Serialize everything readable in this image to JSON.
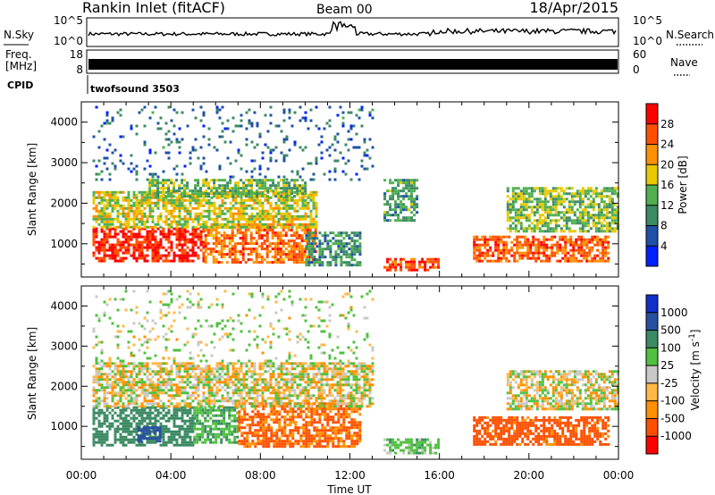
{
  "header": {
    "station": "Rankin Inlet (fitACF)",
    "beam": "Beam 00",
    "date": "18/Apr/2015"
  },
  "top_panels": {
    "nsky_label": "N.Sky",
    "nsky_ticks": [
      "10^5",
      "10^0"
    ],
    "nsearch_label": "N.Search",
    "nsearch_ticks": [
      "10^5",
      "10^0"
    ],
    "freq_label_1": "Freq.",
    "freq_label_2": "[MHz]",
    "freq_ticks": [
      "18",
      "8"
    ],
    "nave_label": "Nave",
    "nave_ticks": [
      "60",
      "0"
    ],
    "cpid_label": "CPID",
    "cpid_value": "twofsound 3503"
  },
  "colors": {
    "power": [
      "#0020ff",
      "#1e50a8",
      "#3c8a64",
      "#50b050",
      "#e8c800",
      "#ff9000",
      "#ff5000",
      "#ff0000"
    ],
    "velocity": [
      "#ff0000",
      "#ff5000",
      "#ff9000",
      "#ffb848",
      "#c8c8c8",
      "#50c040",
      "#3c8a64",
      "#2850a0",
      "#1030c8"
    ]
  },
  "chart_data": [
    {
      "type": "heatmap",
      "name": "power",
      "ylabel": "Slant Range [km]",
      "xlabel": "Time UT",
      "xlim": [
        "00:00",
        "24:00"
      ],
      "x_ticks": [
        "00:00",
        "04:00",
        "08:00",
        "12:00",
        "16:00",
        "20:00",
        "00:00"
      ],
      "ylim": [
        180,
        4500
      ],
      "y_ticks": [
        1000,
        2000,
        3000,
        4000
      ],
      "colorbar_label": "Power [dB]",
      "colorbar_ticks": [
        "4",
        "8",
        "12",
        "16",
        "20",
        "24",
        "28"
      ],
      "colorbar_range": [
        0,
        30
      ],
      "regions": [
        {
          "t": [
            0.5,
            5.5
          ],
          "r": [
            550,
            1400
          ],
          "v": 27
        },
        {
          "t": [
            5.5,
            10.5
          ],
          "r": [
            550,
            1500
          ],
          "v": 23
        },
        {
          "t": [
            0.5,
            10.5
          ],
          "r": [
            1400,
            2300
          ],
          "v": 16
        },
        {
          "t": [
            3.0,
            10.0
          ],
          "r": [
            2200,
            2600
          ],
          "v": 13
        },
        {
          "t": [
            10.0,
            12.5
          ],
          "r": [
            500,
            1300
          ],
          "v": 10
        },
        {
          "t": [
            13.5,
            16.0
          ],
          "r": [
            350,
            650
          ],
          "v": 26
        },
        {
          "t": [
            13.5,
            15.0
          ],
          "r": [
            1600,
            2600
          ],
          "v": 11
        },
        {
          "t": [
            17.5,
            23.5
          ],
          "r": [
            550,
            1200
          ],
          "v": 24
        },
        {
          "t": [
            19.0,
            24.0
          ],
          "r": [
            1300,
            2400
          ],
          "v": 14
        },
        {
          "t": [
            0.5,
            13.0
          ],
          "r": [
            2600,
            4400
          ],
          "v": 7
        }
      ]
    },
    {
      "type": "heatmap",
      "name": "velocity",
      "ylabel": "Slant Range [km]",
      "xlabel": "Time UT",
      "xlim": [
        "00:00",
        "24:00"
      ],
      "x_ticks": [
        "00:00",
        "04:00",
        "08:00",
        "12:00",
        "16:00",
        "20:00",
        "00:00"
      ],
      "ylim": [
        180,
        4500
      ],
      "y_ticks": [
        1000,
        2000,
        3000,
        4000
      ],
      "colorbar_label": "Velocity [m s-1]",
      "colorbar_ticks": [
        "1000",
        "500",
        "100",
        "25",
        "-25",
        "-100",
        "-500",
        "-1000"
      ],
      "regions": [
        {
          "t": [
            0.5,
            5.0
          ],
          "r": [
            550,
            1500
          ],
          "v": 250
        },
        {
          "t": [
            2.5,
            3.5
          ],
          "r": [
            600,
            1000
          ],
          "v": 700
        },
        {
          "t": [
            5.0,
            7.0
          ],
          "r": [
            600,
            1500
          ],
          "v": 90
        },
        {
          "t": [
            7.0,
            12.5
          ],
          "r": [
            500,
            1600
          ],
          "v": -120
        },
        {
          "t": [
            0.5,
            13.0
          ],
          "r": [
            1500,
            2600
          ],
          "v": 0
        },
        {
          "t": [
            13.5,
            16.0
          ],
          "r": [
            350,
            700
          ],
          "v": 60
        },
        {
          "t": [
            17.5,
            23.5
          ],
          "r": [
            550,
            1250
          ],
          "v": -150
        },
        {
          "t": [
            19.0,
            24.0
          ],
          "r": [
            1400,
            2400
          ],
          "v": 0
        },
        {
          "t": [
            0.5,
            13.0
          ],
          "r": [
            2600,
            4400
          ],
          "v": 30
        }
      ]
    }
  ]
}
